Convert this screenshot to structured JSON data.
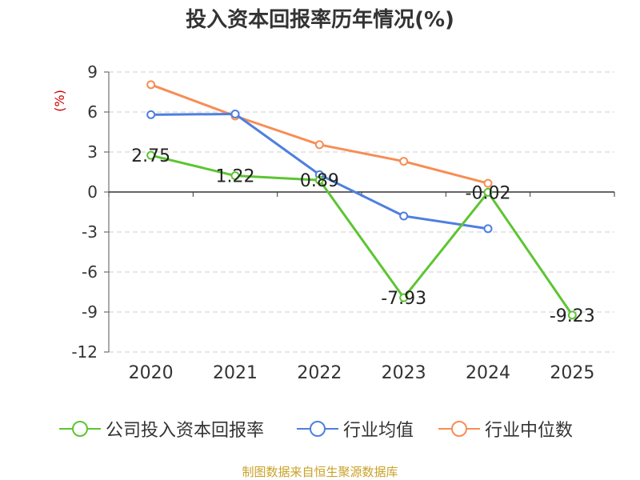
{
  "chart_data": {
    "type": "line",
    "title": "投入资本回报率历年情况(%)",
    "ylabel": "(%)",
    "xlabel": "",
    "categories": [
      "2020",
      "2021",
      "2022",
      "2023",
      "2024",
      "2025"
    ],
    "ylim": [
      -12,
      9
    ],
    "yticks": [
      9,
      6,
      3,
      0,
      -3,
      -6,
      -9,
      -12
    ],
    "grid": "horizontal dashed",
    "legend_position": "bottom",
    "series": [
      {
        "name": "公司投入资本回报率",
        "color": "#5cc532",
        "values": [
          2.75,
          1.22,
          0.89,
          -7.93,
          -0.02,
          -9.23
        ],
        "labels": [
          "2.75",
          "1.22",
          "0.89",
          "-7.93",
          "-0.02",
          "-9.23"
        ]
      },
      {
        "name": "行业均值",
        "color": "#4e7fe0",
        "values": [
          5.8,
          5.85,
          1.3,
          -1.8,
          -2.75,
          null
        ]
      },
      {
        "name": "行业中位数",
        "color": "#f78d54",
        "values": [
          8.05,
          5.7,
          3.55,
          2.3,
          0.65,
          null
        ]
      }
    ]
  },
  "footer": {
    "source": "制图数据来自恒生聚源数据库"
  }
}
